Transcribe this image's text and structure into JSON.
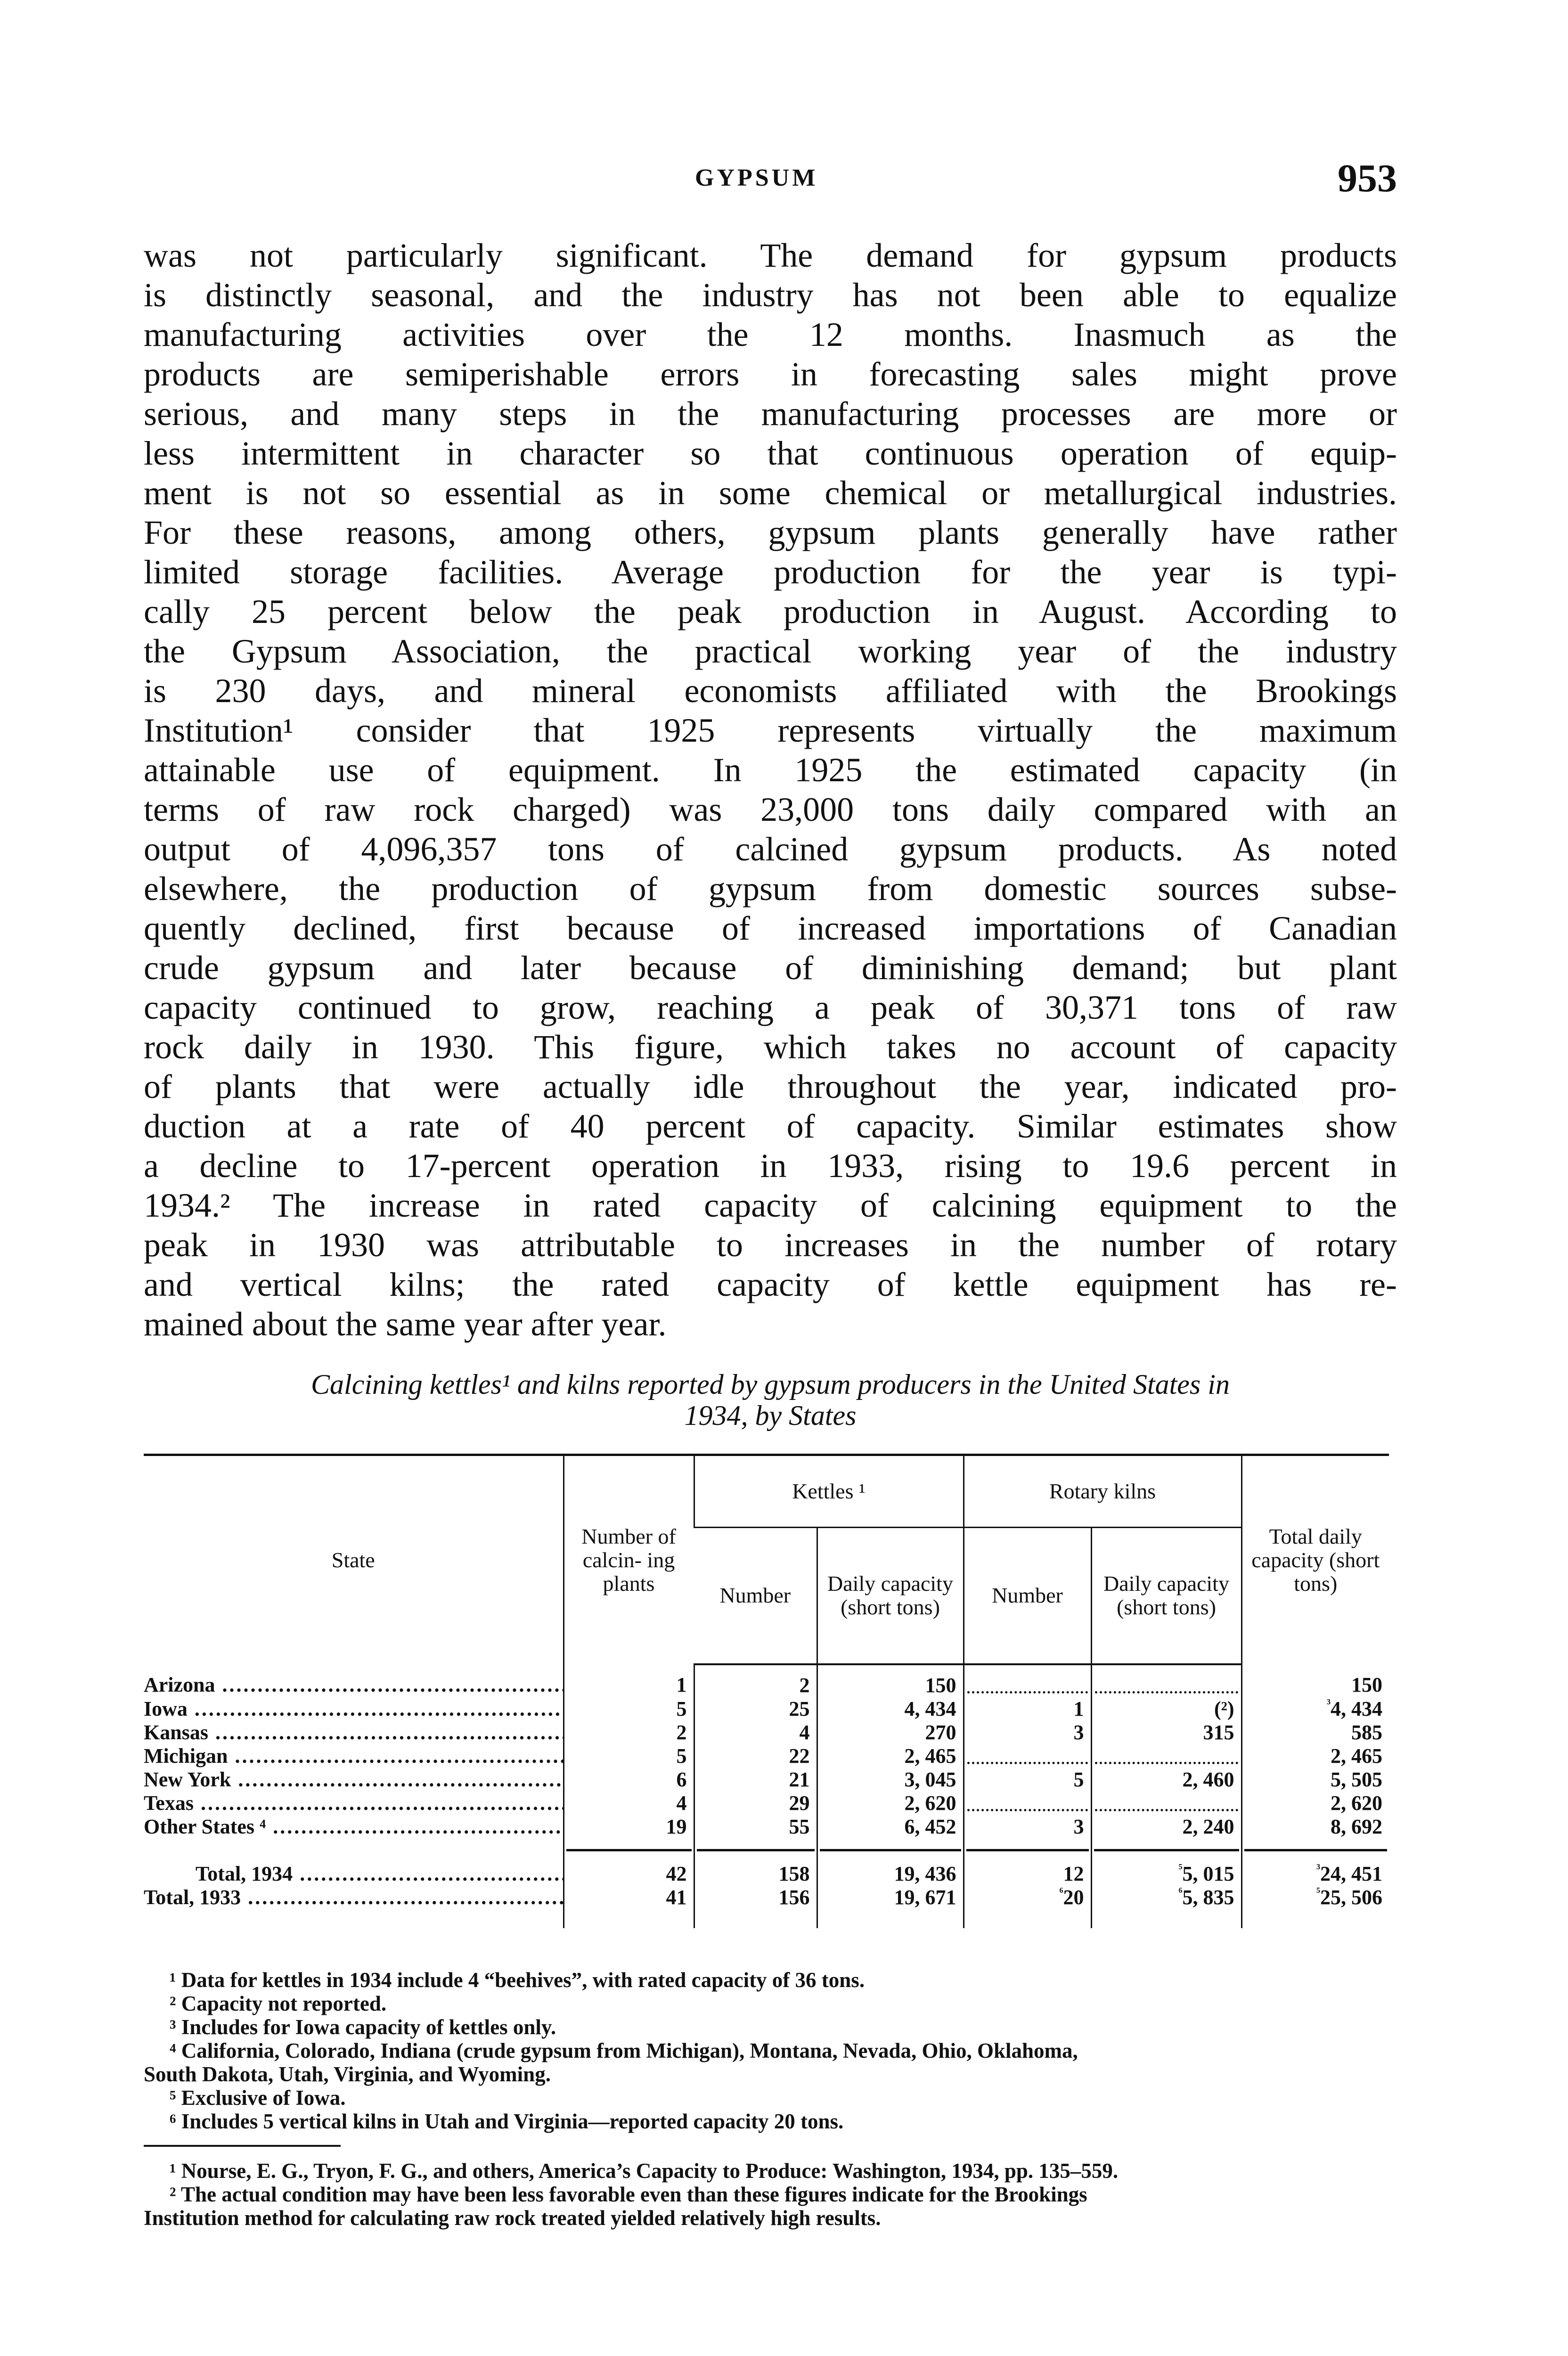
{
  "running_head": {
    "title": "GYPSUM",
    "page_number": "953"
  },
  "body_lines": [
    "was not particularly significant. The demand for gypsum products",
    "is distinctly seasonal, and the industry has not been able to equalize",
    "manufacturing activities over the 12 months. Inasmuch as the",
    "products are semiperishable errors in forecasting sales might prove",
    "serious, and many steps in the manufacturing processes are more or",
    "less intermittent in character so that continuous operation of equip-",
    "ment is not so essential as in some chemical or metallurgical industries.",
    "For these reasons, among others, gypsum plants generally have rather",
    "limited storage facilities. Average production for the year is typi-",
    "cally 25 percent below the peak production in August. According to",
    "the Gypsum Association, the practical working year of the industry",
    "is 230 days, and mineral economists affiliated with the Brookings",
    "Institution¹ consider that 1925 represents virtually the maximum",
    "attainable use of equipment. In 1925 the estimated capacity (in",
    "terms of raw rock charged) was 23,000 tons daily compared with an",
    "output of 4,096,357 tons of calcined gypsum products. As noted",
    "elsewhere, the production of gypsum from domestic sources subse-",
    "quently declined, first because of increased importations of Canadian",
    "crude gypsum and later because of diminishing demand; but plant",
    "capacity continued to grow, reaching a peak of 30,371 tons of raw",
    "rock daily in 1930. This figure, which takes no account of capacity",
    "of plants that were actually idle throughout the year, indicated pro-",
    "duction at a rate of 40 percent of capacity. Similar estimates show",
    "a decline to 17-percent operation in 1933, rising to 19.6 percent in",
    "1934.² The increase in rated capacity of calcining equipment to the",
    "peak in 1930 was attributable to increases in the number of rotary",
    "and vertical kilns; the rated capacity of kettle equipment has re-",
    "mained about the same year after year."
  ],
  "table": {
    "caption_line1": "Calcining kettles¹ and kilns reported by gypsum producers in the United States in",
    "caption_line2": "1934, by States",
    "headers": {
      "state": "State",
      "plants": "Number of calcin- ing plants",
      "kettles": "Kettles ¹",
      "rotary": "Rotary kilns",
      "number": "Number",
      "daily": "Daily capacity (short tons)",
      "total": "Total daily capacity (short tons)"
    },
    "rows": [
      {
        "state": "Arizona",
        "cells": [
          [
            "",
            "1"
          ],
          [
            "",
            "2"
          ],
          [
            "",
            "150"
          ],
          [
            "",
            "-"
          ],
          [
            "",
            "-"
          ],
          [
            "",
            "150"
          ]
        ]
      },
      {
        "state": "Iowa",
        "cells": [
          [
            "",
            "5"
          ],
          [
            "",
            "25"
          ],
          [
            "",
            "4, 434"
          ],
          [
            "",
            "1"
          ],
          [
            "",
            "(²)"
          ],
          [
            "³",
            "4, 434"
          ]
        ]
      },
      {
        "state": "Kansas",
        "cells": [
          [
            "",
            "2"
          ],
          [
            "",
            "4"
          ],
          [
            "",
            "270"
          ],
          [
            "",
            "3"
          ],
          [
            "",
            "315"
          ],
          [
            "",
            "585"
          ]
        ]
      },
      {
        "state": "Michigan",
        "cells": [
          [
            "",
            "5"
          ],
          [
            "",
            "22"
          ],
          [
            "",
            "2, 465"
          ],
          [
            "",
            "-"
          ],
          [
            "",
            "-"
          ],
          [
            "",
            "2, 465"
          ]
        ]
      },
      {
        "state": "New York",
        "cells": [
          [
            "",
            "6"
          ],
          [
            "",
            "21"
          ],
          [
            "",
            "3, 045"
          ],
          [
            "",
            "5"
          ],
          [
            "",
            "2, 460"
          ],
          [
            "",
            "5, 505"
          ]
        ]
      },
      {
        "state": "Texas",
        "cells": [
          [
            "",
            "4"
          ],
          [
            "",
            "29"
          ],
          [
            "",
            "2, 620"
          ],
          [
            "",
            "-"
          ],
          [
            "",
            "-"
          ],
          [
            "",
            "2, 620"
          ]
        ]
      },
      {
        "state": "Other States ⁴",
        "cells": [
          [
            "",
            "19"
          ],
          [
            "",
            "55"
          ],
          [
            "",
            "6, 452"
          ],
          [
            "",
            "3"
          ],
          [
            "",
            "2, 240"
          ],
          [
            "",
            "8, 692"
          ]
        ]
      }
    ],
    "totals": [
      {
        "state": "Total, 1934",
        "indent": true,
        "cells": [
          [
            "",
            "42"
          ],
          [
            "",
            "158"
          ],
          [
            "",
            "19, 436"
          ],
          [
            "",
            "12"
          ],
          [
            "⁵",
            "5, 015"
          ],
          [
            "³",
            "24, 451"
          ]
        ]
      },
      {
        "state": "Total, 1933",
        "indent": false,
        "cells": [
          [
            "",
            "41"
          ],
          [
            "",
            "156"
          ],
          [
            "",
            "19, 671"
          ],
          [
            "⁶",
            "20"
          ],
          [
            "⁶",
            "5, 835"
          ],
          [
            "⁵",
            "25, 506"
          ]
        ]
      }
    ]
  },
  "table_footnotes": [
    "¹ Data for kettles in 1934 include 4 “beehives”, with rated capacity of 36 tons.",
    "² Capacity not reported.",
    "³ Includes for Iowa capacity of kettles only.",
    "⁴ California, Colorado, Indiana (crude gypsum from Michigan), Montana, Nevada, Ohio, Oklahoma,",
    "South Dakota, Utah, Virginia, and Wyoming.",
    "⁵ Exclusive of Iowa.",
    "⁶ Includes 5 vertical kilns in Utah and Virginia—reported capacity 20 tons."
  ],
  "page_footnotes": [
    "¹ Nourse, E. G., Tryon, F. G., and others, America’s Capacity to Produce: Washington, 1934, pp. 135–559.",
    "² The actual condition may have been less favorable even than these figures indicate for the Brookings",
    "Institution method for calculating raw rock treated yielded relatively high results."
  ]
}
